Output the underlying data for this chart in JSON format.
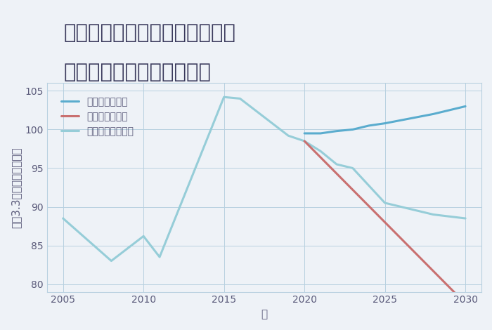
{
  "title_line1": "千葉県千葉市若葉区加曽利町の",
  "title_line2": "中古マンションの価格推移",
  "xlabel": "年",
  "ylabel": "平（3.3㎡）単価（万円）",
  "background_color": "#eef2f7",
  "plot_background": "#eef2f7",
  "series": {
    "good": {
      "label": "グッドシナリオ",
      "color": "#5aacce",
      "linewidth": 2.2,
      "years": [
        2020,
        2021,
        2022,
        2023,
        2024,
        2025,
        2028,
        2030
      ],
      "values": [
        99.5,
        99.5,
        99.8,
        100.0,
        100.5,
        100.8,
        102.0,
        103.0
      ]
    },
    "bad": {
      "label": "バッドシナリオ",
      "color": "#c97070",
      "linewidth": 2.2,
      "years": [
        2020,
        2030
      ],
      "values": [
        98.5,
        77.5
      ]
    },
    "normal": {
      "label": "ノーマルシナリオ",
      "color": "#96cdd8",
      "linewidth": 2.2,
      "years": [
        2005,
        2008,
        2010,
        2011,
        2015,
        2016,
        2019,
        2020,
        2021,
        2022,
        2023,
        2025,
        2028,
        2030
      ],
      "values": [
        88.5,
        83.0,
        86.2,
        83.5,
        104.2,
        104.0,
        99.2,
        98.5,
        97.2,
        95.5,
        95.0,
        90.5,
        89.0,
        88.5
      ]
    }
  },
  "xlim": [
    2004,
    2031
  ],
  "ylim": [
    79,
    106
  ],
  "yticks": [
    80,
    85,
    90,
    95,
    100,
    105
  ],
  "xticks": [
    2005,
    2010,
    2015,
    2020,
    2025,
    2030
  ],
  "title_fontsize": 21,
  "axis_fontsize": 11,
  "tick_fontsize": 10,
  "legend_fontsize": 10,
  "title_color": "#3a3a5c",
  "axis_color": "#5a5a7a",
  "tick_color": "#5a5a7a",
  "grid_color": "#b8d0e0",
  "spine_color": "#b8d0e0"
}
